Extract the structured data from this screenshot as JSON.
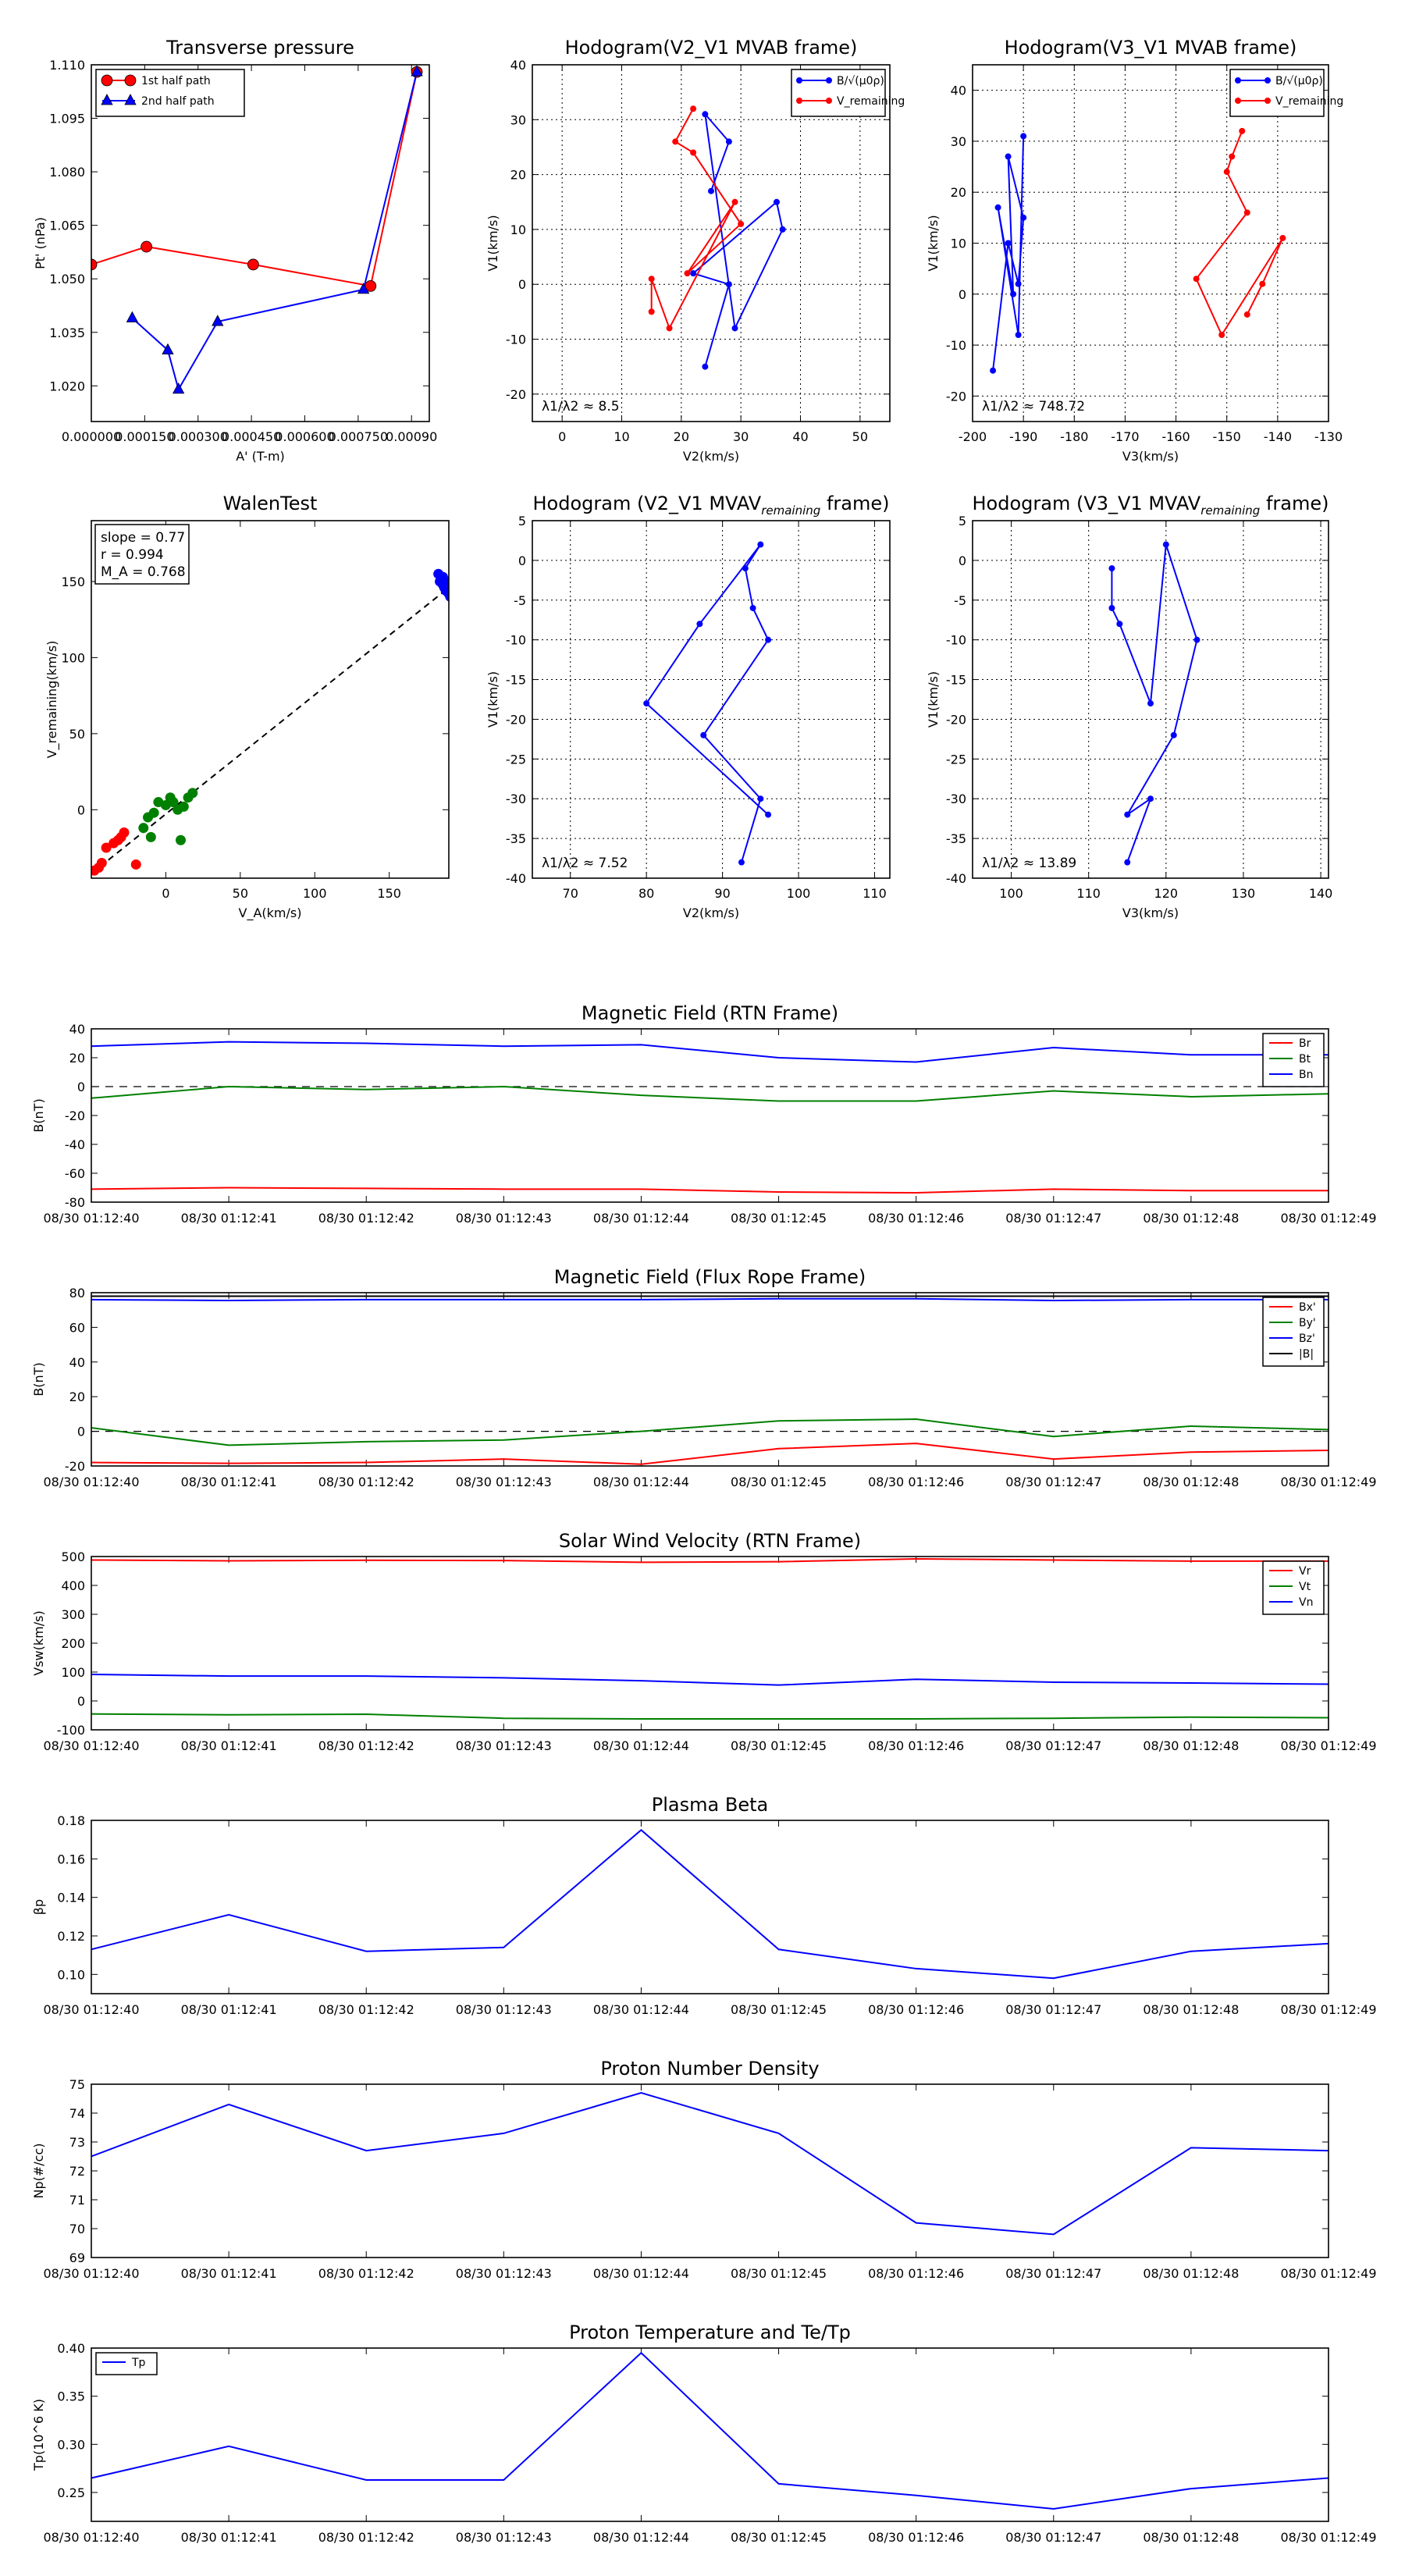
{
  "time_ticks": [
    "08/30 01:12:40",
    "08/30 01:12:41",
    "08/30 01:12:42",
    "08/30 01:12:43",
    "08/30 01:12:44",
    "08/30 01:12:45",
    "08/30 01:12:46",
    "08/30 01:12:47",
    "08/30 01:12:48",
    "08/30 01:12:49"
  ],
  "colors": {
    "red": "#ff0000",
    "green": "#008000",
    "blue": "#0000ff",
    "black": "#000000",
    "grid": "#888888"
  },
  "chart_data": [
    {
      "id": "tp",
      "type": "line",
      "title": "Transverse pressure",
      "xlabel": "A' (T-m)",
      "ylabel": "Pt' (nPa)",
      "xlim": [
        0,
        0.00095
      ],
      "ylim": [
        1.01,
        1.11
      ],
      "xticks": [
        0,
        0.00015,
        0.0003,
        0.00045,
        0.0006,
        0.00075,
        0.0009
      ],
      "xtick_labels": [
        "0.000000",
        "0.000150",
        "0.000300",
        "0.000450",
        "0.000600",
        "0.000750",
        "0.00090"
      ],
      "yticks": [
        1.02,
        1.035,
        1.05,
        1.065,
        1.08,
        1.095,
        1.11
      ],
      "ytick_labels": [
        "1.020",
        "1.035",
        "1.050",
        "1.065",
        "1.080",
        "1.095",
        "1.110"
      ],
      "grid": false,
      "legend_position": "top-left",
      "series": [
        {
          "name": "1st half path",
          "color": "red",
          "marker": "circle",
          "x": [
            0.0,
            0.000155,
            0.000455,
            0.000785,
            0.000915
          ],
          "y": [
            1.054,
            1.059,
            1.054,
            1.048,
            1.108
          ]
        },
        {
          "name": "2nd half path",
          "color": "blue",
          "marker": "triangle",
          "x": [
            0.000115,
            0.000215,
            0.000245,
            0.000355,
            0.000765,
            0.000915
          ],
          "y": [
            1.039,
            1.03,
            1.019,
            1.038,
            1.047,
            1.108
          ]
        }
      ]
    },
    {
      "id": "h1",
      "type": "line",
      "title": "Hodogram(V2_V1 MVAB frame)",
      "xlabel": "V2(km/s)",
      "ylabel": "V1(km/s)",
      "xlim": [
        -5,
        55
      ],
      "ylim": [
        -25,
        40
      ],
      "xticks": [
        0,
        10,
        20,
        30,
        40,
        50
      ],
      "yticks": [
        -20,
        -10,
        0,
        10,
        20,
        30,
        40
      ],
      "grid": true,
      "legend_position": "top-right",
      "annotation": "λ1/λ2 ≈ 8.5",
      "series": [
        {
          "name": "B/√(μ0ρ)",
          "color": "blue",
          "marker": "dot",
          "x": [
            24,
            28,
            22,
            36,
            37,
            29,
            24,
            28,
            25
          ],
          "y": [
            -15,
            0,
            2,
            15,
            10,
            -8,
            31,
            26,
            17
          ]
        },
        {
          "name": "V_remaining",
          "color": "red",
          "marker": "dot",
          "x": [
            22,
            19,
            22,
            30,
            21,
            29,
            18,
            15,
            15
          ],
          "y": [
            32,
            26,
            24,
            11,
            2,
            15,
            -8,
            1,
            -5
          ]
        }
      ]
    },
    {
      "id": "h2",
      "type": "line",
      "title": "Hodogram(V3_V1 MVAB frame)",
      "xlabel": "V3(km/s)",
      "ylabel": "V1(km/s)",
      "xlim": [
        -200,
        -130
      ],
      "ylim": [
        -25,
        45
      ],
      "xticks": [
        -200,
        -190,
        -180,
        -170,
        -160,
        -150,
        -140,
        -130
      ],
      "yticks": [
        -20,
        -10,
        0,
        10,
        20,
        30,
        40
      ],
      "grid": true,
      "legend_position": "top-right",
      "annotation": "λ1/λ2 ≈ 748.72",
      "series": [
        {
          "name": "B/√(μ0ρ)",
          "color": "blue",
          "marker": "dot",
          "x": [
            -196,
            -193,
            -191,
            -190,
            -193,
            -192,
            -195,
            -191,
            -190
          ],
          "y": [
            -15,
            10,
            2,
            15,
            27,
            0,
            17,
            -8,
            31
          ]
        },
        {
          "name": "V_remaining",
          "color": "red",
          "marker": "dot",
          "x": [
            -147,
            -149,
            -150,
            -146,
            -156,
            -151,
            -139,
            -143,
            -146
          ],
          "y": [
            32,
            27,
            24,
            16,
            3,
            -8,
            11,
            2,
            -4
          ]
        }
      ]
    },
    {
      "id": "walen",
      "type": "scatter",
      "title": "WalenTest",
      "xlabel": "V_A(km/s)",
      "ylabel": "V_remaining(km/s)",
      "xlim": [
        -50,
        190
      ],
      "ylim": [
        -45,
        190
      ],
      "xticks": [
        0,
        50,
        100,
        150
      ],
      "yticks": [
        0,
        50,
        100,
        150
      ],
      "grid": false,
      "stats": [
        "slope = 0.77",
        "r = 0.994",
        "M_A = 0.768"
      ],
      "fit_line": {
        "x": [
          -50,
          190
        ],
        "y": [
          -42,
          146
        ]
      },
      "series": [
        {
          "name": "red",
          "color": "red",
          "x": [
            -48,
            -45,
            -43,
            -40,
            -35,
            -32,
            -30,
            -28,
            -20
          ],
          "y": [
            -40,
            -38,
            -35,
            -25,
            -22,
            -20,
            -18,
            -15,
            -36
          ]
        },
        {
          "name": "green",
          "color": "green",
          "x": [
            -15,
            -12,
            -10,
            -8,
            -5,
            0,
            3,
            5,
            8,
            10,
            12,
            15,
            18,
            5
          ],
          "y": [
            -12,
            -5,
            -18,
            -2,
            5,
            3,
            8,
            5,
            0,
            -20,
            2,
            8,
            11,
            5
          ]
        },
        {
          "name": "blue",
          "color": "blue",
          "x": [
            183,
            184,
            185,
            186,
            187,
            188,
            189,
            190,
            191,
            186,
            188
          ],
          "y": [
            155,
            150,
            152,
            148,
            146,
            144,
            150,
            142,
            140,
            153,
            147
          ]
        }
      ]
    },
    {
      "id": "h3",
      "type": "line",
      "title": "Hodogram (V2_V1 MVAV",
      "title_sub": "remaining",
      "title_end": " frame)",
      "xlabel": "V2(km/s)",
      "ylabel": "V1(km/s)",
      "xlim": [
        65,
        112
      ],
      "ylim": [
        -40,
        5
      ],
      "xticks": [
        70,
        80,
        90,
        100,
        110
      ],
      "yticks": [
        -40,
        -35,
        -30,
        -25,
        -20,
        -15,
        -10,
        -5,
        0,
        5
      ],
      "grid": true,
      "annotation": "λ1/λ2 ≈ 7.52",
      "series": [
        {
          "name": "trace",
          "color": "blue",
          "marker": "dot",
          "x": [
            92.5,
            95,
            87.5,
            96,
            94,
            93,
            95,
            87,
            80,
            96
          ],
          "y": [
            -38,
            -30,
            -22,
            -10,
            -6,
            -1,
            2,
            -8,
            -18,
            -32
          ]
        }
      ]
    },
    {
      "id": "h4",
      "type": "line",
      "title": "Hodogram (V3_V1 MVAV",
      "title_sub": "remaining",
      "title_end": " frame)",
      "xlabel": "V3(km/s)",
      "ylabel": "V1(km/s)",
      "xlim": [
        95,
        141
      ],
      "ylim": [
        -40,
        5
      ],
      "xticks": [
        100,
        110,
        120,
        130,
        140
      ],
      "yticks": [
        -40,
        -35,
        -30,
        -25,
        -20,
        -15,
        -10,
        -5,
        0,
        5
      ],
      "grid": true,
      "annotation": "λ1/λ2 ≈ 13.89",
      "series": [
        {
          "name": "trace",
          "color": "blue",
          "marker": "dot",
          "x": [
            115,
            118,
            115,
            121,
            124,
            120,
            118,
            114,
            113,
            113
          ],
          "y": [
            -38,
            -30,
            -32,
            -22,
            -10,
            2,
            -18,
            -8,
            -6,
            -1
          ]
        }
      ]
    },
    {
      "id": "mag_rtn",
      "type": "line",
      "title": "Magnetic Field (RTN Frame)",
      "ylabel": "B(nT)",
      "ylim": [
        -80,
        40
      ],
      "yticks": [
        -80,
        -60,
        -40,
        -20,
        0,
        20,
        40
      ],
      "zero_line": true,
      "legend_position": "top-right",
      "series": [
        {
          "name": "Br",
          "color": "red",
          "values": [
            -71,
            -70,
            -70.5,
            -71,
            -71,
            -73,
            -73.5,
            -71,
            -72,
            -72
          ]
        },
        {
          "name": "Bt",
          "color": "green",
          "values": [
            -8,
            0,
            -2,
            0,
            -6,
            -10,
            -10,
            -3,
            -7,
            -5
          ]
        },
        {
          "name": "Bn",
          "color": "blue",
          "values": [
            28,
            31,
            30,
            28,
            29,
            20,
            17,
            27,
            22,
            22
          ]
        }
      ]
    },
    {
      "id": "mag_fr",
      "type": "line",
      "title": "Magnetic Field (Flux Rope Frame)",
      "ylabel": "B(nT)",
      "ylim": [
        -20,
        80
      ],
      "yticks": [
        -20,
        0,
        20,
        40,
        60,
        80
      ],
      "zero_line": true,
      "legend_position": "top-right",
      "series": [
        {
          "name": "Bx'",
          "color": "red",
          "values": [
            -18,
            -18.5,
            -18,
            -16,
            -19,
            -10,
            -7,
            -16,
            -12,
            -11
          ]
        },
        {
          "name": "By'",
          "color": "green",
          "values": [
            2,
            -8,
            -6,
            -5,
            0,
            6,
            7,
            -3,
            3,
            1
          ]
        },
        {
          "name": "Bz'",
          "color": "blue",
          "values": [
            76,
            75.5,
            76,
            76,
            76,
            76.5,
            76.5,
            75.5,
            76,
            76
          ]
        },
        {
          "name": "|B|",
          "color": "black",
          "values": [
            78,
            78,
            78,
            78,
            78,
            78,
            78,
            78,
            78,
            78
          ]
        }
      ]
    },
    {
      "id": "vsw",
      "type": "line",
      "title": "Solar Wind Velocity (RTN Frame)",
      "ylabel": "Vsw(km/s)",
      "ylim": [
        -100,
        500
      ],
      "yticks": [
        -100,
        0,
        100,
        200,
        300,
        400,
        500
      ],
      "legend_position": "top-right",
      "series": [
        {
          "name": "Vr",
          "color": "red",
          "values": [
            488,
            485,
            487,
            486,
            480,
            482,
            492,
            488,
            484,
            484
          ]
        },
        {
          "name": "Vt",
          "color": "green",
          "values": [
            -45,
            -48,
            -46,
            -60,
            -62,
            -62,
            -62,
            -60,
            -56,
            -58
          ]
        },
        {
          "name": "Vn",
          "color": "blue",
          "values": [
            92,
            86,
            86,
            80,
            70,
            55,
            75,
            65,
            62,
            58
          ]
        }
      ]
    },
    {
      "id": "beta",
      "type": "line",
      "title": "Plasma Beta",
      "ylabel": "βp",
      "ylim": [
        0.09,
        0.18
      ],
      "yticks": [
        0.1,
        0.12,
        0.14,
        0.16,
        0.18
      ],
      "ytick_labels": [
        "0.10",
        "0.12",
        "0.14",
        "0.16",
        "0.18"
      ],
      "series": [
        {
          "name": "beta",
          "color": "blue",
          "values": [
            0.113,
            0.131,
            0.112,
            0.114,
            0.175,
            0.113,
            0.103,
            0.098,
            0.112,
            0.116
          ]
        }
      ]
    },
    {
      "id": "np",
      "type": "line",
      "title": "Proton Number Density",
      "ylabel": "Np(#/cc)",
      "ylim": [
        69,
        75
      ],
      "yticks": [
        69,
        70,
        71,
        72,
        73,
        74,
        75
      ],
      "series": [
        {
          "name": "Np",
          "color": "blue",
          "values": [
            72.5,
            74.3,
            72.7,
            73.3,
            74.7,
            73.3,
            70.2,
            69.8,
            72.8,
            72.7
          ]
        }
      ]
    },
    {
      "id": "tp_temp",
      "type": "line",
      "title": "Proton Temperature and Te/Tp",
      "ylabel": "Tp(10^6 K)",
      "ylim": [
        0.22,
        0.4
      ],
      "yticks": [
        0.25,
        0.3,
        0.35,
        0.4
      ],
      "ytick_labels": [
        "0.25",
        "0.30",
        "0.35",
        "0.40"
      ],
      "legend_position": "top-left",
      "series": [
        {
          "name": "Tp",
          "color": "blue",
          "values": [
            0.265,
            0.298,
            0.263,
            0.263,
            0.395,
            0.259,
            0.247,
            0.233,
            0.254,
            0.265
          ]
        }
      ]
    }
  ]
}
